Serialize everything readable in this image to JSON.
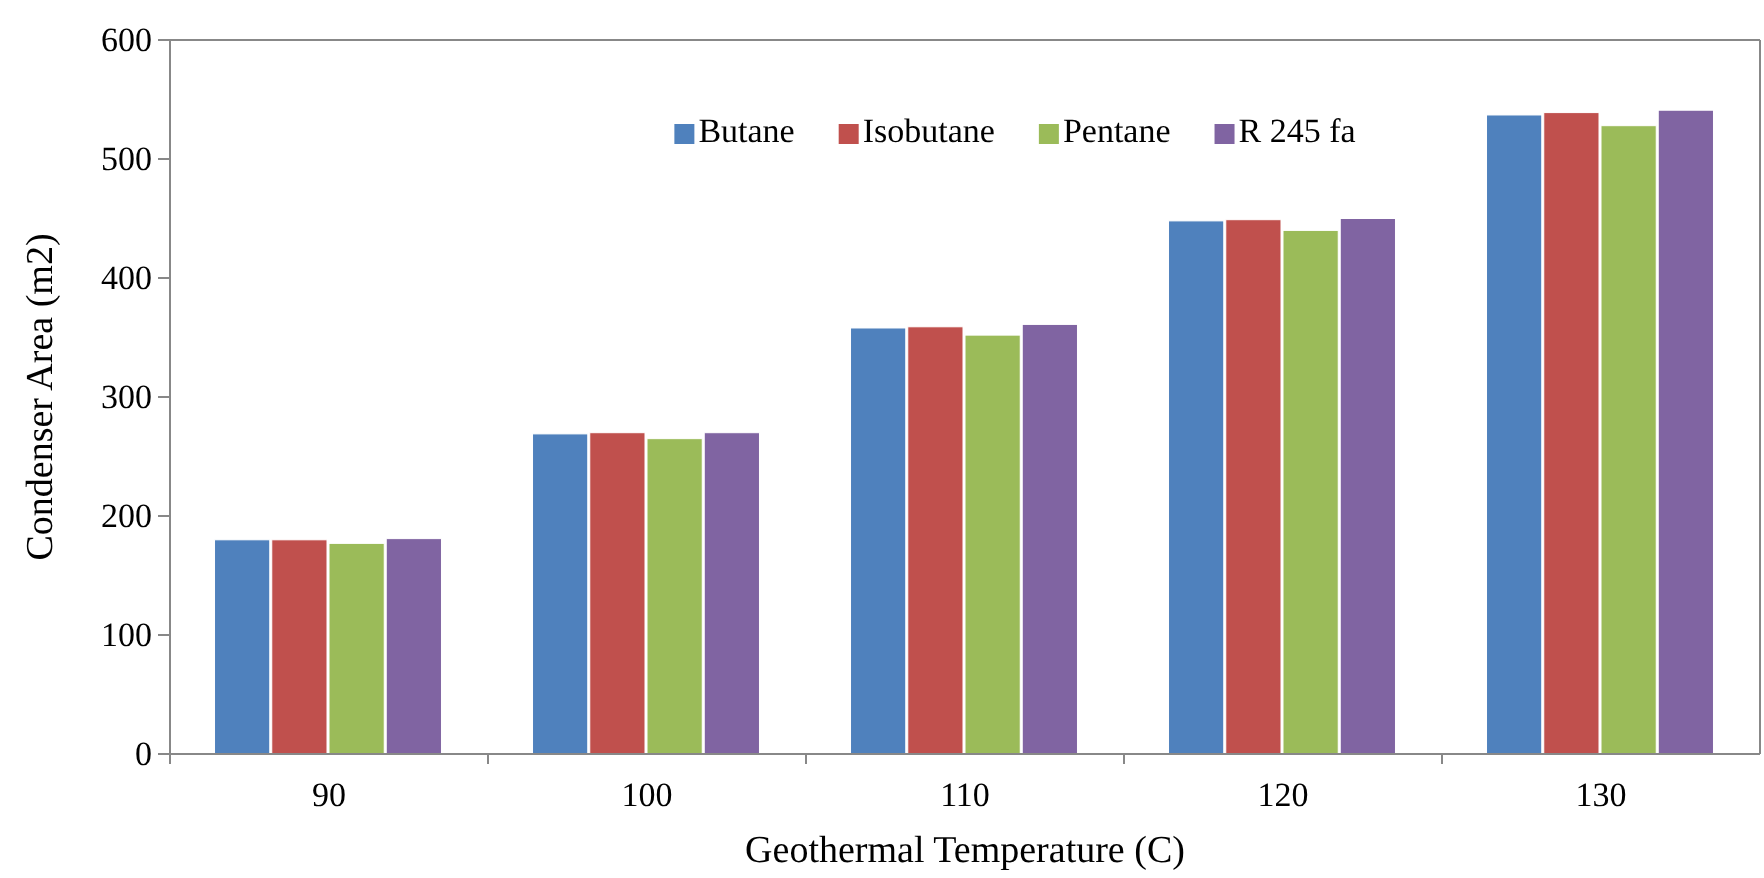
{
  "chart_data": {
    "type": "bar",
    "xlabel": "Geothermal Temperature (C)",
    "ylabel": "Condenser Area (m2)",
    "categories": [
      "90",
      "100",
      "110",
      "120",
      "130"
    ],
    "series": [
      {
        "name": "Butane",
        "color": "#4f81bd",
        "values": [
          180,
          269,
          358,
          448,
          537
        ]
      },
      {
        "name": "Isobutane",
        "color": "#c0504d",
        "values": [
          180,
          270,
          359,
          449,
          539
        ]
      },
      {
        "name": "Pentane",
        "color": "#9bbb59",
        "values": [
          177,
          265,
          352,
          440,
          528
        ]
      },
      {
        "name": "R 245 fa",
        "color": "#8064a2",
        "values": [
          181,
          270,
          361,
          450,
          541
        ]
      }
    ],
    "ylim": [
      0,
      600
    ],
    "yticks": [
      0,
      100,
      200,
      300,
      400,
      500,
      600
    ],
    "grid": false,
    "legend": "top"
  }
}
